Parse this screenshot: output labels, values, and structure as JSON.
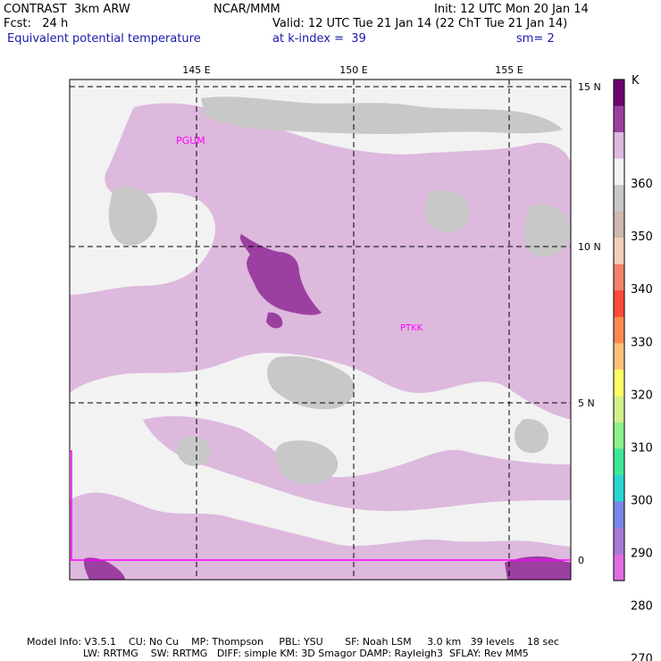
{
  "header": {
    "model": "CONTRAST  3km ARW",
    "org": "NCAR/MMM",
    "init": "Init: 12 UTC Mon 20 Jan 14",
    "fcst": "Fcst:   24 h",
    "valid": "Valid: 12 UTC Tue 21 Jan 14 (22 ChT Tue 21 Jan 14)",
    "field": "Equivalent potential temperature",
    "level": "at k-index =  39",
    "smooth": "sm= 2"
  },
  "map": {
    "lon_labels": [
      "145 E",
      "150 E",
      "155 E"
    ],
    "lat_labels": [
      "15 N",
      "10 N",
      "5 N",
      "0"
    ],
    "stations": [
      {
        "id": "PGUM"
      },
      {
        "id": "PTKK"
      }
    ],
    "colors": {
      "magenta_dark": "#9b3fa0",
      "lilac": "#ddb9dd",
      "white_ish": "#f2f2f2",
      "gray": "#c8c8c8",
      "station": "#ff00ff"
    }
  },
  "colorbar": {
    "unit": "K",
    "labels": [
      "360",
      "350",
      "340",
      "330",
      "320",
      "310",
      "300",
      "290",
      "280",
      "270"
    ],
    "colors": [
      "#6e0070",
      "#9b3fa0",
      "#ddb9dd",
      "#f2f2f2",
      "#c8c8c8",
      "#cdb9ad",
      "#f3cfb9",
      "#f3826b",
      "#ff4a3a",
      "#ff8a50",
      "#ffc27a",
      "#ffff66",
      "#d4f08a",
      "#8cf08a",
      "#3ee89a",
      "#2ad6d0",
      "#7a86ea",
      "#a67ad6",
      "#e06ee0"
    ]
  },
  "footer": {
    "line1": "Model Info: V3.5.1    CU: No Cu    MP: Thompson     PBL: YSU       SF: Noah LSM     3.0 km   39 levels    18 sec",
    "line2": "                  LW: RRTMG    SW: RRTMG   DIFF: simple KM: 3D Smagor DAMP: Rayleigh3  SFLAY: Rev MM5"
  }
}
